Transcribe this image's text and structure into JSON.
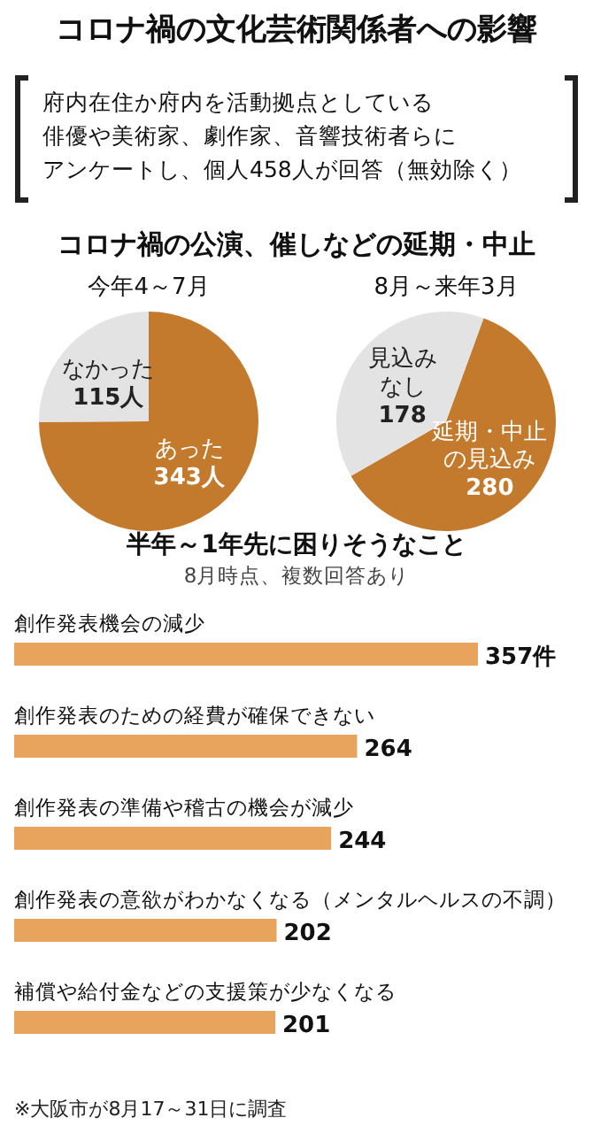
{
  "chart_data": [
    {
      "type": "other",
      "title": "コロナ禍の文化芸術関係者への影響",
      "subtitle": "コロナ禍の公演、催しなどの延期・中止",
      "annotations": [
        "府内在住か府内を活動拠点としている",
        "俳優や美術家、劇作家、音響技術者らに",
        "アンケートし、個人458人が回答（無効除く）"
      ]
    },
    {
      "type": "pie",
      "title": "今年4～7月",
      "categories": [
        "あった",
        "なかった"
      ],
      "values": [
        343,
        115
      ],
      "colors": [
        "#c47a2c",
        "#e3e3e3"
      ],
      "value_labels": [
        "343人",
        "115人"
      ]
    },
    {
      "type": "pie",
      "title": "8月～来年3月",
      "categories": [
        "延期・中止の見込み",
        "見込みなし"
      ],
      "values": [
        280,
        178
      ],
      "colors": [
        "#c47a2c",
        "#e3e3e3"
      ],
      "value_labels": [
        "280",
        "178"
      ]
    },
    {
      "type": "bar",
      "orientation": "horizontal",
      "title": "半年～1年先に困りそうなこと",
      "subtitle": "8月時点、複数回答あり",
      "categories": [
        "創作発表機会の減少",
        "創作発表のための経費が確保できない",
        "創作発表の準備や稽古の機会が減少",
        "創作発表の意欲がわかなくなる（メンタルヘルスの不調）",
        "補償や給付金などの支援策が少なくなる"
      ],
      "values": [
        357,
        264,
        244,
        202,
        201
      ],
      "color": "#e8a35c",
      "value_labels": [
        "357件",
        "264",
        "244",
        "202",
        "201"
      ],
      "annotations": [
        "※大阪市が8月17～31日に調査"
      ]
    }
  ]
}
